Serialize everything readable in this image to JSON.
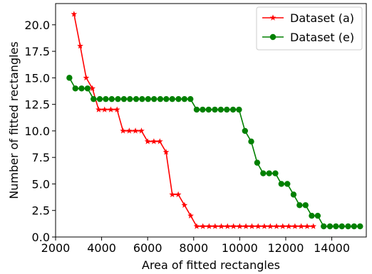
{
  "chart_data": {
    "type": "line",
    "xlabel": "Area of fitted rectangles",
    "ylabel": "Number of fitted rectangles",
    "xlim": [
      2000,
      15500
    ],
    "ylim": [
      0,
      22
    ],
    "xticks": [
      2000,
      4000,
      6000,
      8000,
      10000,
      12000,
      14000
    ],
    "yticks": [
      0.0,
      2.5,
      5.0,
      7.5,
      10.0,
      12.5,
      15.0,
      17.5,
      20.0
    ],
    "ytick_labels": [
      "0.0",
      "2.5",
      "5.0",
      "7.5",
      "10.0",
      "12.5",
      "15.0",
      "17.5",
      "20.0"
    ],
    "grid": false,
    "legend_position": "top-right",
    "series": [
      {
        "name": "Dataset (a)",
        "color": "#ff0000",
        "marker": "star",
        "x": [
          2800,
          3070,
          3330,
          3600,
          3870,
          4130,
          4400,
          4670,
          4930,
          5200,
          5470,
          5730,
          6000,
          6270,
          6530,
          6800,
          7070,
          7330,
          7600,
          7870,
          8130,
          8400,
          8670,
          8930,
          9200,
          9470,
          9730,
          10000,
          10270,
          10530,
          10800,
          11070,
          11330,
          11600,
          11870,
          12130,
          12400,
          12670,
          12930,
          13200
        ],
        "y": [
          21,
          18,
          15,
          14,
          12,
          12,
          12,
          12,
          10,
          10,
          10,
          10,
          9,
          9,
          9,
          8,
          4,
          4,
          3,
          2,
          1,
          1,
          1,
          1,
          1,
          1,
          1,
          1,
          1,
          1,
          1,
          1,
          1,
          1,
          1,
          1,
          1,
          1,
          1,
          1
        ]
      },
      {
        "name": "Dataset (e)",
        "color": "#008000",
        "marker": "circle",
        "x": [
          2600,
          2860,
          3130,
          3390,
          3650,
          3920,
          4180,
          4440,
          4710,
          4970,
          5230,
          5500,
          5760,
          6020,
          6280,
          6550,
          6810,
          7070,
          7340,
          7600,
          7860,
          8130,
          8390,
          8650,
          8920,
          9180,
          9440,
          9710,
          9970,
          10230,
          10500,
          10760,
          11020,
          11280,
          11550,
          11810,
          12070,
          12340,
          12600,
          12860,
          13130,
          13390,
          13650,
          13920,
          14180,
          14440,
          14710,
          14970,
          15230
        ],
        "y": [
          15,
          14,
          14,
          14,
          13,
          13,
          13,
          13,
          13,
          13,
          13,
          13,
          13,
          13,
          13,
          13,
          13,
          13,
          13,
          13,
          13,
          12,
          12,
          12,
          12,
          12,
          12,
          12,
          12,
          10,
          9,
          7,
          6,
          6,
          6,
          5,
          5,
          4,
          3,
          3,
          2,
          2,
          1,
          1,
          1,
          1,
          1,
          1,
          1
        ]
      }
    ]
  }
}
